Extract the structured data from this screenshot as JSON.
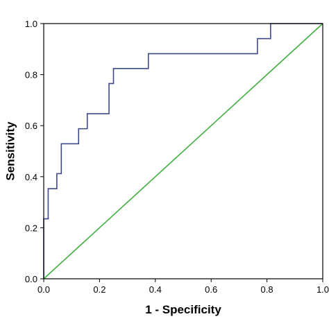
{
  "chart_data": {
    "type": "line",
    "xlabel": "1 - Specificity",
    "ylabel": "Sensitivity",
    "xlim": [
      0,
      1
    ],
    "ylim": [
      0,
      1
    ],
    "x_ticks": [
      "0.0",
      "0.2",
      "0.4",
      "0.6",
      "0.8",
      "1.0"
    ],
    "y_ticks": [
      "0.0",
      "0.2",
      "0.4",
      "0.6",
      "0.8",
      "1.0"
    ],
    "grid": false,
    "legend": "none",
    "series": [
      {
        "color": "#3b4a8c",
        "x": [
          0,
          0,
          0.016,
          0.016,
          0.047,
          0.047,
          0.063,
          0.063,
          0.125,
          0.125,
          0.156,
          0.156,
          0.234,
          0.234,
          0.25,
          0.25,
          0.375,
          0.375,
          0.766,
          0.766,
          0.813,
          0.813,
          1.0
        ],
        "y": [
          0,
          0.235,
          0.235,
          0.353,
          0.353,
          0.412,
          0.412,
          0.529,
          0.529,
          0.588,
          0.588,
          0.647,
          0.647,
          0.765,
          0.765,
          0.824,
          0.824,
          0.882,
          0.882,
          0.941,
          0.941,
          1.0,
          1.0
        ]
      },
      {
        "color": "#3fae3f",
        "x": [
          0,
          1
        ],
        "y": [
          0,
          1
        ]
      }
    ]
  }
}
